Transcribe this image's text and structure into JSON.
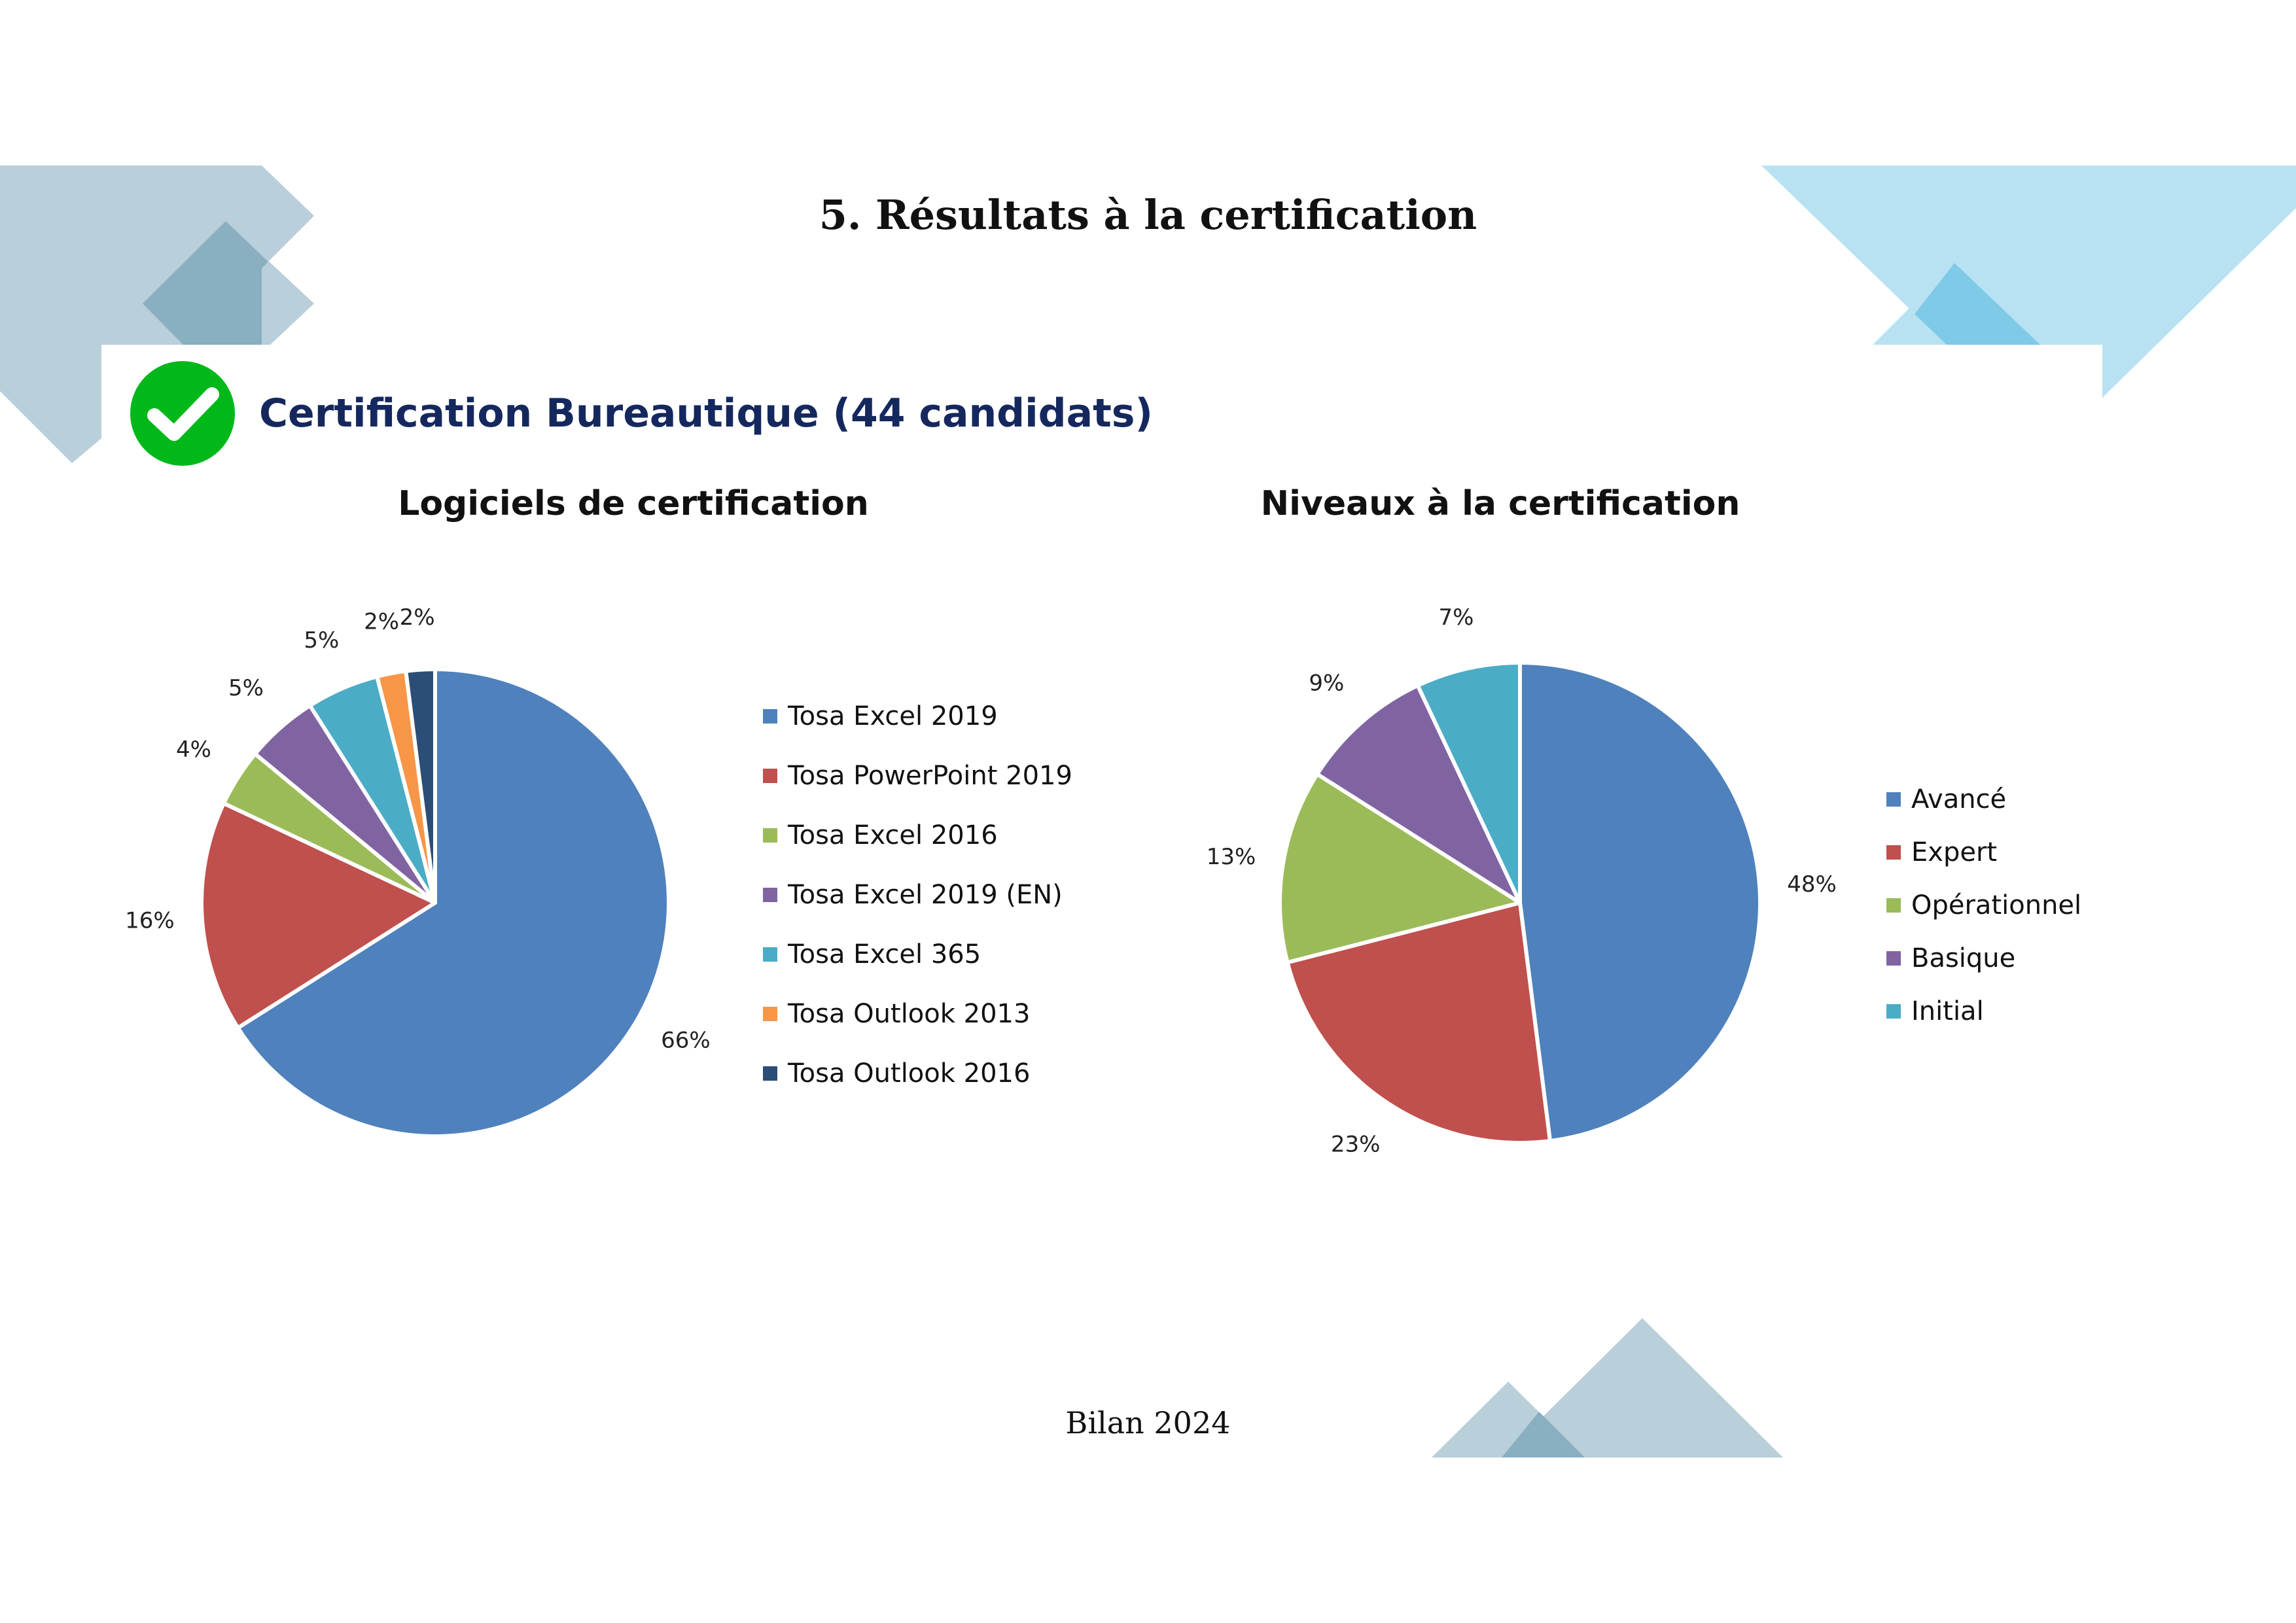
{
  "page": {
    "title": "5.  Résultats à la certification",
    "footer": "Bilan 2024"
  },
  "section": {
    "title": "Certification Bureautique (44 candidats)",
    "icon": "check-circle-icon",
    "icon_color": "#00b81a"
  },
  "theme": {
    "deco_dark": "#b9cfd9",
    "deco_dark_overlap": "#89afc0",
    "deco_light": "#b8e2f2",
    "deco_light_overlap": "#7fcae7",
    "title_color": "#15285e"
  },
  "chart_data": [
    {
      "type": "pie",
      "title": "Logiciels de certification",
      "categories": [
        "Tosa Excel 2019",
        "Tosa PowerPoint 2019",
        "Tosa Excel 2016",
        "Tosa Excel 2019 (EN)",
        "Tosa Excel 365",
        "Tosa Outlook 2013",
        "Tosa Outlook 2016"
      ],
      "values": [
        66,
        16,
        4,
        5,
        5,
        2,
        2
      ],
      "labels": [
        "66%",
        "16%",
        "4%",
        "5%",
        "5%",
        "2%",
        "2%"
      ],
      "colors": [
        "#4f81bd",
        "#c0504d",
        "#9bbb59",
        "#8064a2",
        "#4bacc6",
        "#f79646",
        "#2c4d75"
      ],
      "legend": "right"
    },
    {
      "type": "pie",
      "title": "Niveaux à la certification",
      "categories": [
        "Avancé",
        "Expert",
        "Opérationnel",
        "Basique",
        "Initial"
      ],
      "values": [
        48,
        23,
        13,
        9,
        7
      ],
      "labels": [
        "48%",
        "23%",
        "13%",
        "9%",
        "7%"
      ],
      "colors": [
        "#4f81bd",
        "#c0504d",
        "#9bbb59",
        "#8064a2",
        "#4bacc6"
      ],
      "legend": "right"
    }
  ]
}
